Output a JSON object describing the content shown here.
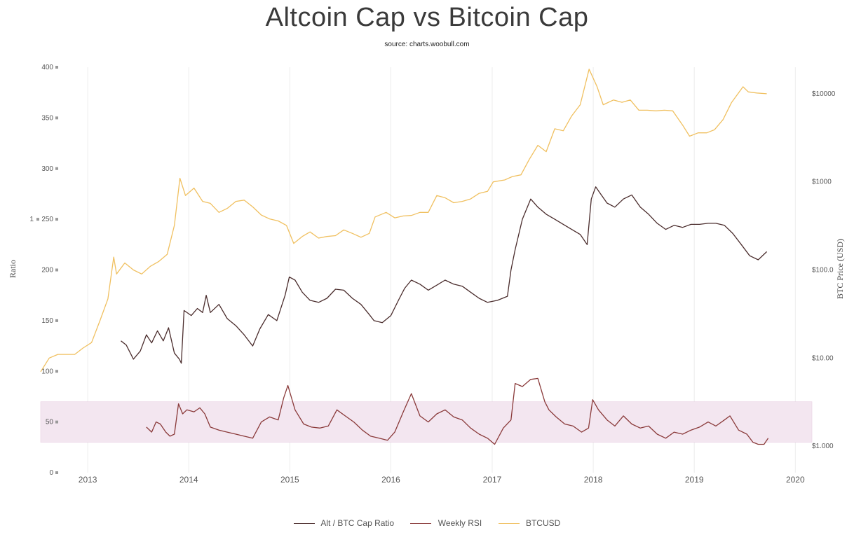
{
  "title": "Altcoin Cap vs Bitcoin Cap",
  "subtitle": "source: charts.woobull.com",
  "chart_data": {
    "type": "line",
    "x_range": [
      "2012-07-15",
      "2020-03-01"
    ],
    "x_ticks": [
      "2013",
      "2014",
      "2015",
      "2016",
      "2017",
      "2018",
      "2019",
      "2020"
    ],
    "left_axis": {
      "label": "Ratio",
      "range": [
        0,
        400
      ],
      "ticks": [
        "0",
        "50",
        "100",
        "150",
        "200",
        "250",
        "300",
        "350",
        "400"
      ],
      "extra_tick": "1"
    },
    "right_axis": {
      "label": "BTC Price (USD)",
      "scale": "log",
      "range": [
        0.5,
        20000
      ],
      "ticks": [
        "$1.000",
        "$10.00",
        "$100.0",
        "$1000",
        "$10000"
      ]
    },
    "band": {
      "from": 30,
      "to": 70,
      "color": "#f3e6f0"
    },
    "grid": "vertical",
    "legend_position": "bottom",
    "series": [
      {
        "name": "Alt / BTC Cap Ratio",
        "axis": "left",
        "color": "#4a2c2c",
        "points": [
          [
            "2013-05-01",
            130
          ],
          [
            "2013-05-20",
            126
          ],
          [
            "2013-06-15",
            112
          ],
          [
            "2013-07-10",
            120
          ],
          [
            "2013-08-01",
            136
          ],
          [
            "2013-08-20",
            128
          ],
          [
            "2013-09-10",
            140
          ],
          [
            "2013-10-01",
            130
          ],
          [
            "2013-10-20",
            143
          ],
          [
            "2013-11-10",
            118
          ],
          [
            "2013-11-28",
            112
          ],
          [
            "2013-12-05",
            108
          ],
          [
            "2013-12-15",
            160
          ],
          [
            "2014-01-10",
            155
          ],
          [
            "2014-02-01",
            162
          ],
          [
            "2014-02-20",
            158
          ],
          [
            "2014-03-05",
            175
          ],
          [
            "2014-03-20",
            158
          ],
          [
            "2014-04-20",
            166
          ],
          [
            "2014-05-20",
            152
          ],
          [
            "2014-06-20",
            145
          ],
          [
            "2014-07-20",
            136
          ],
          [
            "2014-08-20",
            125
          ],
          [
            "2014-09-15",
            142
          ],
          [
            "2014-10-15",
            156
          ],
          [
            "2014-11-15",
            150
          ],
          [
            "2014-12-15",
            175
          ],
          [
            "2014-12-30",
            193
          ],
          [
            "2015-01-20",
            190
          ],
          [
            "2015-02-15",
            178
          ],
          [
            "2015-03-15",
            170
          ],
          [
            "2015-04-15",
            168
          ],
          [
            "2015-05-15",
            172
          ],
          [
            "2015-06-15",
            181
          ],
          [
            "2015-07-15",
            180
          ],
          [
            "2015-08-15",
            172
          ],
          [
            "2015-09-15",
            166
          ],
          [
            "2015-10-15",
            156
          ],
          [
            "2015-11-01",
            150
          ],
          [
            "2015-12-01",
            148
          ],
          [
            "2016-01-01",
            155
          ],
          [
            "2016-02-01",
            172
          ],
          [
            "2016-02-20",
            182
          ],
          [
            "2016-03-15",
            190
          ],
          [
            "2016-04-15",
            186
          ],
          [
            "2016-05-15",
            180
          ],
          [
            "2016-06-15",
            185
          ],
          [
            "2016-07-15",
            190
          ],
          [
            "2016-08-15",
            186
          ],
          [
            "2016-09-15",
            184
          ],
          [
            "2016-10-15",
            178
          ],
          [
            "2016-11-15",
            172
          ],
          [
            "2016-12-15",
            168
          ],
          [
            "2017-01-20",
            170
          ],
          [
            "2017-02-25",
            174
          ],
          [
            "2017-03-10",
            200
          ],
          [
            "2017-03-25",
            220
          ],
          [
            "2017-04-20",
            250
          ],
          [
            "2017-05-20",
            270
          ],
          [
            "2017-06-15",
            262
          ],
          [
            "2017-07-15",
            255
          ],
          [
            "2017-08-15",
            250
          ],
          [
            "2017-09-15",
            245
          ],
          [
            "2017-10-15",
            240
          ],
          [
            "2017-11-15",
            235
          ],
          [
            "2017-12-10",
            225
          ],
          [
            "2017-12-25",
            270
          ],
          [
            "2018-01-10",
            282
          ],
          [
            "2018-01-25",
            276
          ],
          [
            "2018-02-20",
            266
          ],
          [
            "2018-03-20",
            262
          ],
          [
            "2018-04-20",
            270
          ],
          [
            "2018-05-20",
            274
          ],
          [
            "2018-06-20",
            262
          ],
          [
            "2018-07-20",
            255
          ],
          [
            "2018-08-20",
            246
          ],
          [
            "2018-09-20",
            240
          ],
          [
            "2018-10-20",
            244
          ],
          [
            "2018-11-20",
            242
          ],
          [
            "2018-12-20",
            245
          ],
          [
            "2019-01-20",
            245
          ],
          [
            "2019-02-20",
            246
          ],
          [
            "2019-03-20",
            246
          ],
          [
            "2019-04-20",
            244
          ],
          [
            "2019-05-20",
            236
          ],
          [
            "2019-06-20",
            225
          ],
          [
            "2019-07-20",
            214
          ],
          [
            "2019-08-20",
            210
          ],
          [
            "2019-09-20",
            218
          ]
        ]
      },
      {
        "name": "Weekly RSI",
        "axis": "left",
        "color": "#8a3a3a",
        "points": [
          [
            "2013-08-01",
            45
          ],
          [
            "2013-08-20",
            40
          ],
          [
            "2013-09-05",
            50
          ],
          [
            "2013-09-20",
            48
          ],
          [
            "2013-10-10",
            40
          ],
          [
            "2013-10-25",
            36
          ],
          [
            "2013-11-10",
            38
          ],
          [
            "2013-11-25",
            68
          ],
          [
            "2013-12-10",
            58
          ],
          [
            "2013-12-25",
            62
          ],
          [
            "2014-01-20",
            60
          ],
          [
            "2014-02-10",
            64
          ],
          [
            "2014-02-28",
            58
          ],
          [
            "2014-03-20",
            45
          ],
          [
            "2014-04-20",
            42
          ],
          [
            "2014-05-20",
            40
          ],
          [
            "2014-06-20",
            38
          ],
          [
            "2014-07-20",
            36
          ],
          [
            "2014-08-20",
            34
          ],
          [
            "2014-09-20",
            50
          ],
          [
            "2014-10-20",
            55
          ],
          [
            "2014-11-20",
            52
          ],
          [
            "2014-12-10",
            74
          ],
          [
            "2014-12-25",
            86
          ],
          [
            "2015-01-20",
            62
          ],
          [
            "2015-02-20",
            48
          ],
          [
            "2015-03-20",
            45
          ],
          [
            "2015-04-20",
            44
          ],
          [
            "2015-05-20",
            46
          ],
          [
            "2015-06-20",
            62
          ],
          [
            "2015-07-20",
            56
          ],
          [
            "2015-08-20",
            50
          ],
          [
            "2015-09-20",
            42
          ],
          [
            "2015-10-20",
            36
          ],
          [
            "2015-11-20",
            34
          ],
          [
            "2015-12-20",
            32
          ],
          [
            "2016-01-15",
            40
          ],
          [
            "2016-02-15",
            60
          ],
          [
            "2016-03-15",
            78
          ],
          [
            "2016-04-15",
            56
          ],
          [
            "2016-05-15",
            50
          ],
          [
            "2016-06-15",
            58
          ],
          [
            "2016-07-15",
            62
          ],
          [
            "2016-08-15",
            55
          ],
          [
            "2016-09-15",
            52
          ],
          [
            "2016-10-15",
            44
          ],
          [
            "2016-11-15",
            38
          ],
          [
            "2016-12-15",
            34
          ],
          [
            "2017-01-10",
            28
          ],
          [
            "2017-02-10",
            44
          ],
          [
            "2017-03-10",
            52
          ],
          [
            "2017-03-25",
            88
          ],
          [
            "2017-04-20",
            85
          ],
          [
            "2017-05-20",
            92
          ],
          [
            "2017-06-15",
            93
          ],
          [
            "2017-07-10",
            70
          ],
          [
            "2017-07-25",
            62
          ],
          [
            "2017-08-20",
            55
          ],
          [
            "2017-09-20",
            48
          ],
          [
            "2017-10-20",
            46
          ],
          [
            "2017-11-20",
            40
          ],
          [
            "2017-12-15",
            44
          ],
          [
            "2017-12-30",
            72
          ],
          [
            "2018-01-20",
            62
          ],
          [
            "2018-02-20",
            52
          ],
          [
            "2018-03-20",
            46
          ],
          [
            "2018-04-20",
            56
          ],
          [
            "2018-05-20",
            48
          ],
          [
            "2018-06-20",
            44
          ],
          [
            "2018-07-20",
            46
          ],
          [
            "2018-08-20",
            38
          ],
          [
            "2018-09-20",
            34
          ],
          [
            "2018-10-20",
            40
          ],
          [
            "2018-11-20",
            38
          ],
          [
            "2018-12-20",
            42
          ],
          [
            "2019-01-20",
            45
          ],
          [
            "2019-02-20",
            50
          ],
          [
            "2019-03-20",
            46
          ],
          [
            "2019-04-20",
            52
          ],
          [
            "2019-05-10",
            56
          ],
          [
            "2019-06-10",
            42
          ],
          [
            "2019-07-10",
            38
          ],
          [
            "2019-08-01",
            30
          ],
          [
            "2019-08-20",
            28
          ],
          [
            "2019-09-10",
            28
          ],
          [
            "2019-09-25",
            34
          ]
        ]
      },
      {
        "name": "BTCUSD",
        "axis": "right",
        "color": "#f0c060",
        "points": [
          [
            "2012-07-15",
            7
          ],
          [
            "2012-08-15",
            10
          ],
          [
            "2012-09-15",
            11
          ],
          [
            "2012-10-15",
            11
          ],
          [
            "2012-11-15",
            11
          ],
          [
            "2012-12-15",
            13
          ],
          [
            "2013-01-15",
            15
          ],
          [
            "2013-02-15",
            27
          ],
          [
            "2013-03-15",
            47
          ],
          [
            "2013-04-05",
            140
          ],
          [
            "2013-04-15",
            90
          ],
          [
            "2013-05-15",
            120
          ],
          [
            "2013-06-15",
            100
          ],
          [
            "2013-07-15",
            90
          ],
          [
            "2013-08-15",
            110
          ],
          [
            "2013-09-15",
            125
          ],
          [
            "2013-10-15",
            150
          ],
          [
            "2013-11-10",
            320
          ],
          [
            "2013-11-30",
            1100
          ],
          [
            "2013-12-20",
            700
          ],
          [
            "2014-01-20",
            850
          ],
          [
            "2014-02-20",
            600
          ],
          [
            "2014-03-20",
            570
          ],
          [
            "2014-04-20",
            450
          ],
          [
            "2014-05-20",
            500
          ],
          [
            "2014-06-20",
            600
          ],
          [
            "2014-07-20",
            620
          ],
          [
            "2014-08-20",
            520
          ],
          [
            "2014-09-20",
            420
          ],
          [
            "2014-10-20",
            380
          ],
          [
            "2014-11-20",
            360
          ],
          [
            "2014-12-20",
            320
          ],
          [
            "2015-01-15",
            200
          ],
          [
            "2015-02-15",
            240
          ],
          [
            "2015-03-15",
            270
          ],
          [
            "2015-04-15",
            230
          ],
          [
            "2015-05-15",
            240
          ],
          [
            "2015-06-15",
            245
          ],
          [
            "2015-07-15",
            285
          ],
          [
            "2015-08-15",
            260
          ],
          [
            "2015-09-15",
            235
          ],
          [
            "2015-10-15",
            260
          ],
          [
            "2015-11-05",
            400
          ],
          [
            "2015-12-15",
            450
          ],
          [
            "2016-01-15",
            390
          ],
          [
            "2016-02-15",
            410
          ],
          [
            "2016-03-15",
            415
          ],
          [
            "2016-04-15",
            450
          ],
          [
            "2016-05-15",
            450
          ],
          [
            "2016-06-15",
            700
          ],
          [
            "2016-07-15",
            660
          ],
          [
            "2016-08-15",
            580
          ],
          [
            "2016-09-15",
            600
          ],
          [
            "2016-10-15",
            640
          ],
          [
            "2016-11-15",
            740
          ],
          [
            "2016-12-15",
            780
          ],
          [
            "2017-01-05",
            1000
          ],
          [
            "2017-02-15",
            1050
          ],
          [
            "2017-03-15",
            1150
          ],
          [
            "2017-04-15",
            1200
          ],
          [
            "2017-05-15",
            1800
          ],
          [
            "2017-06-15",
            2600
          ],
          [
            "2017-07-15",
            2200
          ],
          [
            "2017-08-15",
            4000
          ],
          [
            "2017-09-15",
            3800
          ],
          [
            "2017-10-15",
            5600
          ],
          [
            "2017-11-15",
            7500
          ],
          [
            "2017-12-17",
            19000
          ],
          [
            "2018-01-15",
            12000
          ],
          [
            "2018-02-06",
            7500
          ],
          [
            "2018-03-15",
            8500
          ],
          [
            "2018-04-15",
            8000
          ],
          [
            "2018-05-15",
            8500
          ],
          [
            "2018-06-15",
            6500
          ],
          [
            "2018-07-15",
            6500
          ],
          [
            "2018-08-15",
            6400
          ],
          [
            "2018-09-15",
            6500
          ],
          [
            "2018-10-15",
            6400
          ],
          [
            "2018-11-20",
            4400
          ],
          [
            "2018-12-15",
            3300
          ],
          [
            "2019-01-15",
            3600
          ],
          [
            "2019-02-15",
            3600
          ],
          [
            "2019-03-15",
            3900
          ],
          [
            "2019-04-15",
            5100
          ],
          [
            "2019-05-15",
            7900
          ],
          [
            "2019-06-26",
            12000
          ],
          [
            "2019-07-15",
            10500
          ],
          [
            "2019-08-15",
            10200
          ],
          [
            "2019-09-20",
            10000
          ]
        ]
      }
    ]
  },
  "legend": [
    {
      "label": "Alt / BTC Cap Ratio",
      "color": "#4a2c2c"
    },
    {
      "label": "Weekly RSI",
      "color": "#8a3a3a"
    },
    {
      "label": "BTCUSD",
      "color": "#f0c060"
    }
  ]
}
